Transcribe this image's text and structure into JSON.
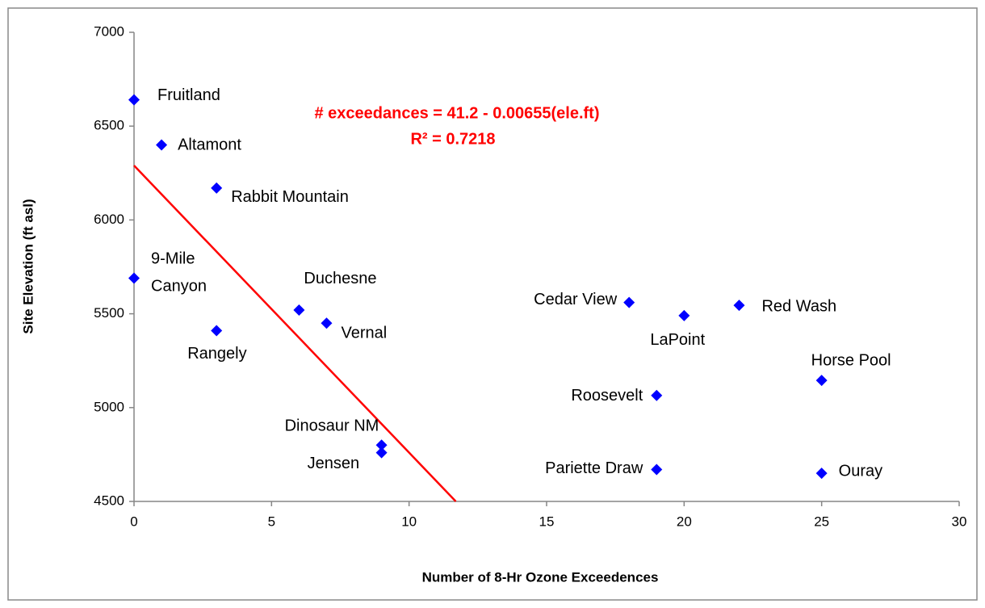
{
  "chart_data": {
    "type": "scatter",
    "xlabel": "Number of 8-Hr Ozone Exceedences",
    "ylabel": "Site Elevation  (ft asl)",
    "annotations": [
      "# exceedances = 41.2 - 0.00655(ele.ft)",
      "R² = 0.7218"
    ],
    "annotation_color": "#ff0000",
    "series": [
      {
        "color": "#0000ff",
        "labels": [
          "Fruitland",
          "Altamont",
          "Rabbit Mountain",
          "9-Mile Canyon",
          "Rangely",
          "Duchesne",
          "Vernal",
          "Dinosaur NM",
          "Jensen",
          "Cedar View",
          "LaPoint",
          "Red Wash",
          "Horse Pool",
          "Roosevelt",
          "Pariette Draw",
          "Ouray"
        ],
        "x": [
          0,
          1,
          3,
          0,
          3,
          6,
          7,
          9,
          9,
          18,
          20,
          22,
          25,
          19,
          19,
          25
        ],
        "values": [
          6640,
          6400,
          6170,
          5690,
          5410,
          5520,
          5450,
          4800,
          4760,
          5560,
          5490,
          5545,
          5145,
          5065,
          4670,
          4650
        ]
      }
    ],
    "trendline": {
      "color": "#ff0000",
      "x": [
        0,
        11.7
      ],
      "y": [
        6290,
        4500
      ]
    },
    "xlim": [
      0,
      30
    ],
    "xticks": [
      0,
      5,
      10,
      15,
      20,
      25,
      30
    ],
    "ylim": [
      4500,
      7000
    ],
    "yticks": [
      4500,
      5000,
      5500,
      6000,
      6500,
      7000
    ],
    "grid": false
  }
}
